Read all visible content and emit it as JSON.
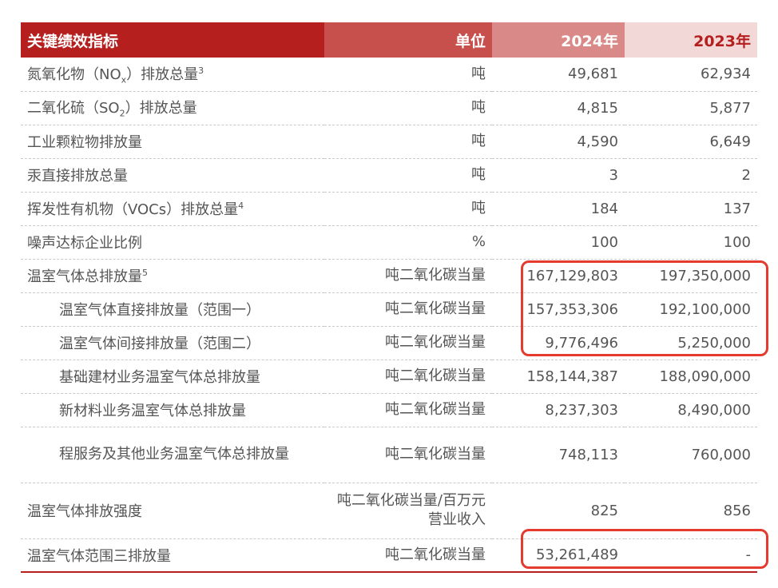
{
  "header": {
    "name": "关键绩效指标",
    "unit": "单位",
    "y2024": "2024年",
    "y2023": "2023年"
  },
  "rows": [
    {
      "name_pre": "氮氧化物（NO",
      "name_sub": "x",
      "name_post": "）排放总量",
      "name_sup": "3",
      "unit": "吨",
      "y2024": "49,681",
      "y2023": "62,934"
    },
    {
      "name_pre": "二氧化硫（SO",
      "name_sub": "2",
      "name_post": "）排放总量",
      "unit": "吨",
      "y2024": "4,815",
      "y2023": "5,877"
    },
    {
      "name": "工业颗粒物排放量",
      "unit": "吨",
      "y2024": "4,590",
      "y2023": "6,649"
    },
    {
      "name": "汞直接排放总量",
      "unit": "吨",
      "y2024": "3",
      "y2023": "2"
    },
    {
      "name": "挥发性有机物（VOCs）排放总量",
      "name_sup": "4",
      "unit": "吨",
      "y2024": "184",
      "y2023": "137"
    },
    {
      "name": "噪声达标企业比例",
      "unit": "%",
      "y2024": "100",
      "y2023": "100"
    },
    {
      "name": "温室气体总排放量",
      "name_sup": "5",
      "unit": "吨二氧化碳当量",
      "y2024": "167,129,803",
      "y2023": "197,350,000"
    },
    {
      "name": "温室气体直接排放量（范围一）",
      "unit": "吨二氧化碳当量",
      "y2024": "157,353,306",
      "y2023": "192,100,000"
    },
    {
      "name": "温室气体间接排放量（范围二）",
      "unit": "吨二氧化碳当量",
      "y2024": "9,776,496",
      "y2023": "5,250,000"
    },
    {
      "name": "基础建材业务温室气体总排放量",
      "unit": "吨二氧化碳当量",
      "y2024": "158,144,387",
      "y2023": "188,090,000"
    },
    {
      "name": "新材料业务温室气体总排放量",
      "unit": "吨二氧化碳当量",
      "y2024": "8,237,303",
      "y2023": "8,490,000"
    },
    {
      "name": "程服务及其他业务温室气体总排放量",
      "unit": "吨二氧化碳当量",
      "y2024": "748,113",
      "y2023": "760,000"
    },
    {
      "name": "温室气体排放强度",
      "unit": "吨二氧化碳当量/百万元营业收入",
      "y2024": "825",
      "y2023": "856"
    },
    {
      "name": "温室气体范围三排放量",
      "unit": "吨二氧化碳当量",
      "y2024": "53,261,489",
      "y2023": "-"
    }
  ],
  "colors": {
    "header_primary": "#b5201f",
    "header_secondary": "#c7504d",
    "header_2024": "#d98a88",
    "header_2023": "#f2d9d8",
    "highlight": "#e53b2f"
  }
}
